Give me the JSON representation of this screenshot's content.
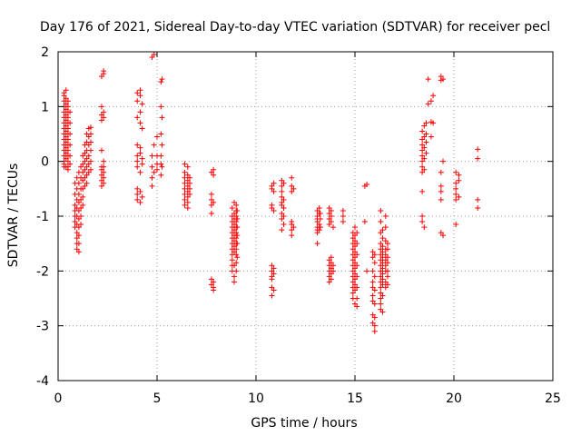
{
  "chart_data": {
    "type": "scatter",
    "title": "Day 176 of 2021, Sidereal Day-to-day VTEC variation (SDTVAR) for receiver pecl",
    "xlabel": "GPS time / hours",
    "ylabel": "SDTVAR / TECUs",
    "xlim": [
      0,
      25
    ],
    "ylim": [
      -4,
      2
    ],
    "x_ticks": [
      0,
      5,
      10,
      15,
      20,
      25
    ],
    "y_ticks": [
      -4,
      -3,
      -2,
      -1,
      0,
      1,
      2
    ],
    "grid": true,
    "marker": "+",
    "color": "#ff0000",
    "series": [
      {
        "name": "SDTVAR",
        "clusters": [
          {
            "x": 0.3,
            "y_values": [
              1.25,
              1.2,
              1.1,
              1.0,
              0.9,
              0.8,
              0.7,
              0.6,
              0.5,
              0.4,
              0.3,
              0.2,
              0.1,
              0.0,
              -0.05,
              -0.1
            ]
          },
          {
            "x": 0.4,
            "y_values": [
              1.3,
              1.15,
              1.05,
              0.95,
              0.85,
              0.75,
              0.65,
              0.55,
              0.45,
              0.35,
              0.25,
              0.15,
              0.05,
              -0.1
            ]
          },
          {
            "x": 0.5,
            "y_values": [
              1.1,
              1.0,
              0.9,
              0.8,
              0.7,
              0.6,
              0.5,
              0.4,
              0.3,
              0.2,
              0.1,
              0.0,
              -0.1,
              -0.15
            ]
          },
          {
            "x": 0.6,
            "y_values": [
              0.9,
              0.7,
              0.5,
              0.3,
              0.1,
              -0.05
            ]
          },
          {
            "x": 0.85,
            "y_values": [
              -0.4,
              -0.6,
              -0.8,
              -0.9,
              -1.0,
              -1.1,
              -1.2
            ]
          },
          {
            "x": 0.95,
            "y_values": [
              -0.3,
              -0.5,
              -0.7,
              -0.85,
              -1.0,
              -1.15,
              -1.3,
              -1.4,
              -1.5,
              -1.6
            ]
          },
          {
            "x": 1.05,
            "y_values": [
              -0.2,
              -0.4,
              -0.6,
              -0.75,
              -0.9,
              -1.05,
              -1.2,
              -1.35,
              -1.5,
              -1.65
            ]
          },
          {
            "x": 1.15,
            "y_values": [
              -0.1,
              -0.3,
              -0.5,
              -0.7,
              -0.85,
              -1.0,
              -1.15
            ]
          },
          {
            "x": 1.25,
            "y_values": [
              0.1,
              -0.05,
              -0.2,
              -0.35,
              -0.5,
              -0.65,
              -0.8
            ]
          },
          {
            "x": 1.35,
            "y_values": [
              0.3,
              0.15,
              0.0,
              -0.15,
              -0.3,
              -0.45
            ]
          },
          {
            "x": 1.45,
            "y_values": [
              0.5,
              0.35,
              0.2,
              0.05,
              -0.1,
              -0.25,
              -0.4
            ]
          },
          {
            "x": 1.55,
            "y_values": [
              0.6,
              0.45,
              0.3,
              0.1,
              -0.05,
              -0.2
            ]
          },
          {
            "x": 1.65,
            "y_values": [
              0.62,
              0.5,
              0.35,
              0.2,
              0.0,
              -0.15
            ]
          },
          {
            "x": 2.2,
            "y_values": [
              1.55,
              1.0,
              0.85,
              0.75,
              0.2,
              -0.1,
              -0.15,
              -0.25,
              -0.35,
              -0.45
            ]
          },
          {
            "x": 2.3,
            "y_values": [
              1.65,
              1.6,
              0.9,
              0.8,
              0.0,
              -0.1,
              -0.2,
              -0.3,
              -0.4
            ]
          },
          {
            "x": 4.0,
            "y_values": [
              1.25,
              1.1,
              0.8,
              0.3,
              0.1,
              0.0,
              -0.1,
              -0.5,
              -0.6,
              -0.7
            ]
          },
          {
            "x": 4.15,
            "y_values": [
              1.3,
              1.2,
              0.9,
              0.7,
              0.25,
              0.15,
              -0.2,
              -0.55,
              -0.75
            ]
          },
          {
            "x": 4.25,
            "y_values": [
              1.05,
              0.6,
              0.05,
              -0.05,
              -0.65
            ]
          },
          {
            "x": 4.75,
            "y_values": [
              1.9,
              0.1,
              -0.1,
              -0.3,
              -0.45
            ]
          },
          {
            "x": 4.85,
            "y_values": [
              1.95,
              0.3,
              -0.2
            ]
          },
          {
            "x": 5.0,
            "y_values": [
              0.45,
              0.1,
              -0.05,
              -0.15
            ]
          },
          {
            "x": 5.2,
            "y_values": [
              1.45,
              1.0,
              0.5,
              0.1,
              -0.05,
              -0.25
            ]
          },
          {
            "x": 5.25,
            "y_values": [
              1.5,
              0.8,
              0.3,
              -0.1
            ]
          },
          {
            "x": 6.4,
            "y_values": [
              -0.05,
              -0.2,
              -0.3,
              -0.4,
              -0.5,
              -0.6,
              -0.7,
              -0.8
            ]
          },
          {
            "x": 6.55,
            "y_values": [
              -0.1,
              -0.25,
              -0.35,
              -0.45,
              -0.55,
              -0.65,
              -0.75,
              -0.85
            ]
          },
          {
            "x": 6.65,
            "y_values": [
              -0.3,
              -0.4,
              -0.5,
              -0.6
            ]
          },
          {
            "x": 7.75,
            "y_values": [
              -0.2,
              -0.6,
              -0.7,
              -0.8,
              -0.95,
              -2.15,
              -2.25
            ]
          },
          {
            "x": 7.85,
            "y_values": [
              -0.15,
              -0.25,
              -0.75,
              -2.2,
              -2.3,
              -2.35
            ]
          },
          {
            "x": 8.8,
            "y_values": [
              -0.85,
              -1.0,
              -1.1,
              -1.2,
              -1.3,
              -1.4,
              -1.5,
              -1.6,
              -1.7,
              -1.8,
              -1.9,
              -2.0
            ]
          },
          {
            "x": 8.9,
            "y_values": [
              -0.75,
              -0.95,
              -1.05,
              -1.15,
              -1.25,
              -1.35,
              -1.45,
              -1.55,
              -1.65,
              -1.9,
              -2.1,
              -2.2
            ]
          },
          {
            "x": 9.0,
            "y_values": [
              -0.8,
              -0.9,
              -1.0,
              -1.1,
              -1.2,
              -1.3,
              -1.4,
              -1.5,
              -1.6,
              -1.7,
              -1.85,
              -2.0
            ]
          },
          {
            "x": 9.05,
            "y_values": [
              -0.9,
              -1.05,
              -1.2,
              -1.35,
              -1.5,
              -1.75
            ]
          },
          {
            "x": 10.8,
            "y_values": [
              -0.45,
              -0.5,
              -0.8,
              -0.85,
              -1.9,
              -2.0,
              -2.1,
              -2.15,
              -2.3,
              -2.45
            ]
          },
          {
            "x": 10.9,
            "y_values": [
              -0.4,
              -0.55,
              -0.9,
              -1.95,
              -2.05,
              -2.35
            ]
          },
          {
            "x": 11.3,
            "y_values": [
              -0.35,
              -0.45,
              -0.55,
              -0.65,
              -0.75,
              -0.8,
              -0.95,
              -1.05,
              -1.25
            ]
          },
          {
            "x": 11.4,
            "y_values": [
              -0.4,
              -0.7,
              -0.85,
              -1.0,
              -1.15
            ]
          },
          {
            "x": 11.8,
            "y_values": [
              -0.3,
              -0.45,
              -0.55,
              -1.1,
              -1.15,
              -1.25,
              -1.35
            ]
          },
          {
            "x": 11.9,
            "y_values": [
              -0.5,
              -1.2
            ]
          },
          {
            "x": 13.1,
            "y_values": [
              -0.9,
              -1.0,
              -1.05,
              -1.1,
              -1.2,
              -1.25,
              -1.3,
              -1.5
            ]
          },
          {
            "x": 13.2,
            "y_values": [
              -0.85,
              -0.95,
              -1.15,
              -1.25
            ]
          },
          {
            "x": 13.25,
            "y_values": [
              -0.95,
              -1.05,
              -1.2
            ]
          },
          {
            "x": 13.7,
            "y_values": [
              -0.85,
              -0.95,
              -1.05,
              -1.15,
              -1.8,
              -1.9,
              -2.0,
              -2.1,
              -2.2
            ]
          },
          {
            "x": 13.8,
            "y_values": [
              -0.9,
              -1.0,
              -1.1,
              -1.75,
              -1.85,
              -1.95,
              -2.05,
              -2.15
            ]
          },
          {
            "x": 13.9,
            "y_values": [
              -1.2,
              -1.9,
              -2.0
            ]
          },
          {
            "x": 14.4,
            "y_values": [
              -0.9,
              -1.0,
              -1.1
            ]
          },
          {
            "x": 14.9,
            "y_values": [
              -1.3,
              -1.4,
              -1.5,
              -1.6,
              -1.7,
              -1.8,
              -1.9,
              -2.0,
              -2.1,
              -2.2,
              -2.3,
              -2.4,
              -2.5
            ]
          },
          {
            "x": 15.0,
            "y_values": [
              -1.2,
              -1.35,
              -1.45,
              -1.55,
              -1.65,
              -1.75,
              -1.85,
              -1.95,
              -2.05,
              -2.15,
              -2.25,
              -2.35,
              -2.6
            ]
          },
          {
            "x": 15.1,
            "y_values": [
              -1.3,
              -1.5,
              -1.7,
              -1.9,
              -2.1,
              -2.3,
              -2.5,
              -2.65
            ]
          },
          {
            "x": 15.5,
            "y_values": [
              -0.45,
              -1.1
            ]
          },
          {
            "x": 15.6,
            "y_values": [
              -0.42,
              -2.0
            ]
          },
          {
            "x": 15.9,
            "y_values": [
              -1.65,
              -1.75,
              -2.0,
              -2.2,
              -2.3,
              -2.45,
              -2.55,
              -2.8,
              -2.95
            ]
          },
          {
            "x": 16.0,
            "y_values": [
              -1.7,
              -1.85,
              -2.1,
              -2.35,
              -2.6,
              -2.85,
              -3.0,
              -3.1
            ]
          },
          {
            "x": 16.3,
            "y_values": [
              -0.9,
              -1.1,
              -1.3,
              -1.5,
              -1.6,
              -1.7,
              -1.8,
              -1.9,
              -2.0,
              -2.1,
              -2.2,
              -2.3,
              -2.4,
              -2.5,
              -2.6,
              -2.7
            ]
          },
          {
            "x": 16.4,
            "y_values": [
              -1.25,
              -1.4,
              -1.55,
              -1.65,
              -1.75,
              -1.85,
              -1.95,
              -2.05,
              -2.15,
              -2.25,
              -2.45,
              -2.75
            ]
          },
          {
            "x": 16.55,
            "y_values": [
              -1.0,
              -1.2,
              -1.45,
              -1.6,
              -1.7,
              -1.8,
              -1.9,
              -2.0,
              -2.2,
              -2.3
            ]
          },
          {
            "x": 16.65,
            "y_values": [
              -1.5,
              -1.6,
              -1.75,
              -1.85,
              -2.0,
              -2.1,
              -2.25
            ]
          },
          {
            "x": 18.4,
            "y_values": [
              0.55,
              0.4,
              0.3,
              0.2,
              0.1,
              0.0,
              -0.1,
              -0.2,
              -0.55,
              -1.0,
              -1.1
            ]
          },
          {
            "x": 18.5,
            "y_values": [
              0.65,
              0.45,
              0.25,
              0.05,
              -0.15,
              -1.2
            ]
          },
          {
            "x": 18.6,
            "y_values": [
              0.7,
              0.5,
              0.35,
              0.15
            ]
          },
          {
            "x": 18.7,
            "y_values": [
              1.5,
              1.05
            ]
          },
          {
            "x": 18.85,
            "y_values": [
              1.1,
              0.72,
              0.45
            ]
          },
          {
            "x": 18.95,
            "y_values": [
              1.2,
              0.7
            ]
          },
          {
            "x": 19.35,
            "y_values": [
              1.55,
              1.48,
              -0.2,
              -0.45,
              -0.55,
              -0.7,
              -1.3
            ]
          },
          {
            "x": 19.45,
            "y_values": [
              1.5,
              0.0,
              -1.35
            ]
          },
          {
            "x": 20.1,
            "y_values": [
              -0.2,
              -0.4,
              -0.5,
              -0.6,
              -0.7,
              -1.15
            ]
          },
          {
            "x": 20.25,
            "y_values": [
              -0.25,
              -0.35,
              -0.65
            ]
          },
          {
            "x": 21.2,
            "y_values": [
              0.22,
              0.05,
              -0.7,
              -0.85
            ]
          }
        ]
      }
    ]
  }
}
